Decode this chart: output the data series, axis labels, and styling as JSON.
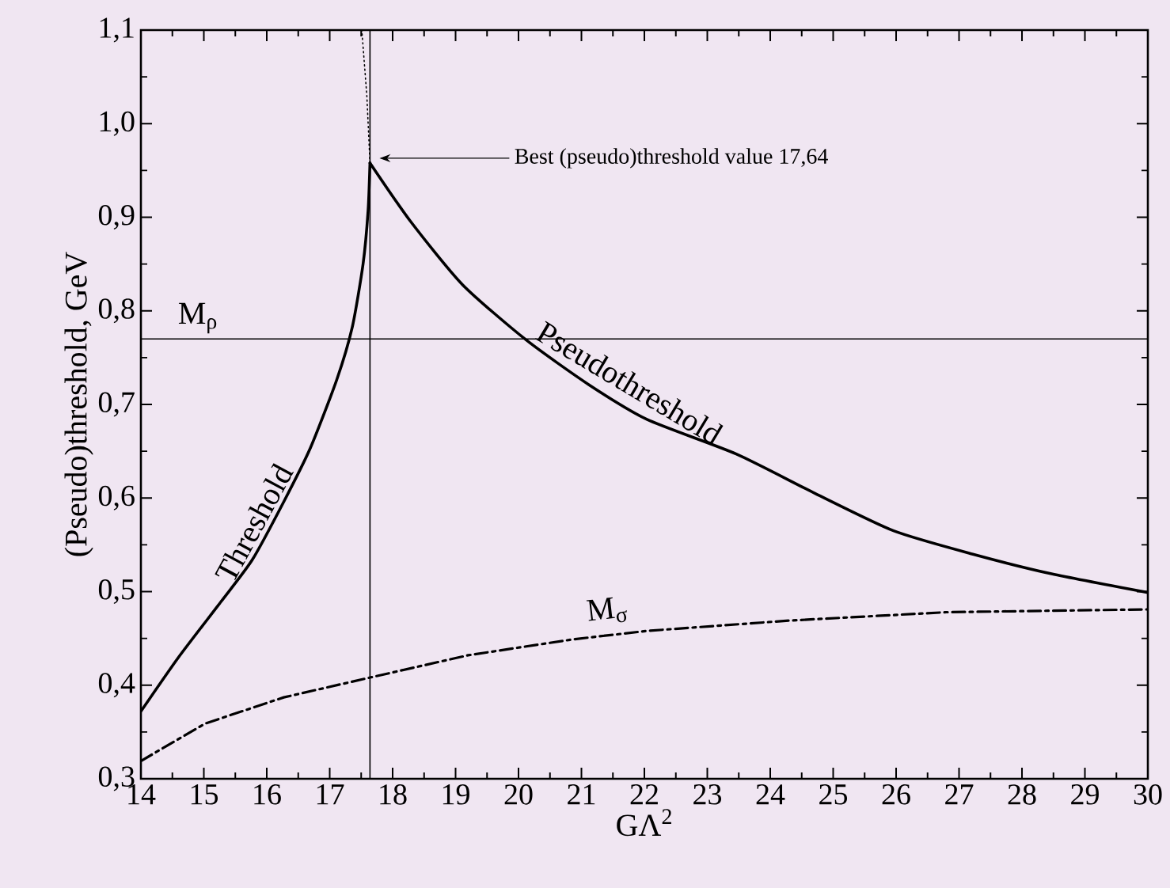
{
  "chart_data": {
    "type": "line",
    "xlabel": "GΛ$^{2}$",
    "ylabel": "(Pseudo)threshold, GeV",
    "xlim": [
      14,
      30
    ],
    "ylim": [
      0.3,
      1.1
    ],
    "xticks": [
      14,
      15,
      16,
      17,
      18,
      19,
      20,
      21,
      22,
      23,
      24,
      25,
      26,
      27,
      28,
      29,
      30
    ],
    "yticks": [
      {
        "value": 0.3,
        "label": "0,3"
      },
      {
        "value": 0.4,
        "label": "0,4"
      },
      {
        "value": 0.5,
        "label": "0,5"
      },
      {
        "value": 0.6,
        "label": "0,6"
      },
      {
        "value": 0.7,
        "label": "0,7"
      },
      {
        "value": 0.8,
        "label": "0,8"
      },
      {
        "value": 0.9,
        "label": "0,9"
      },
      {
        "value": 1.0,
        "label": "1,0"
      },
      {
        "value": 1.1,
        "label": "1,1"
      }
    ],
    "grid": false,
    "marker": "none",
    "series": [
      {
        "name": "Threshold",
        "color": "#000000",
        "line_style": "solid",
        "x": [
          14,
          14.6,
          15.27,
          15.77,
          16.27,
          16.69,
          17.11,
          17.36,
          17.53,
          17.61,
          17.64
        ],
        "values": [
          0.372,
          0.43,
          0.489,
          0.534,
          0.596,
          0.653,
          0.726,
          0.783,
          0.85,
          0.907,
          0.958
        ]
      },
      {
        "name": "Pseudothreshold",
        "color": "#000000",
        "line_style": "solid",
        "x": [
          17.64,
          18.28,
          19.11,
          20.12,
          21.12,
          22.04,
          23.46,
          24.71,
          25.96,
          27.22,
          28.47,
          30
        ],
        "values": [
          0.958,
          0.896,
          0.828,
          0.769,
          0.721,
          0.684,
          0.647,
          0.605,
          0.565,
          0.54,
          0.519,
          0.499
        ]
      },
      {
        "color": "#000000",
        "line_style": "dotted",
        "x": [
          17.64,
          17.59,
          17.51
        ],
        "values": [
          0.958,
          1.03,
          1.1
        ]
      },
      {
        "name": "M$_{σ}$",
        "color": "#000000",
        "line_style": "dashdot",
        "x": [
          14,
          15.02,
          16.27,
          17.63,
          19.2,
          20.87,
          22.04,
          24.29,
          26.8,
          30
        ],
        "values": [
          0.319,
          0.359,
          0.387,
          0.408,
          0.432,
          0.449,
          0.458,
          0.469,
          0.478,
          0.481
        ]
      }
    ],
    "ref_lines": [
      {
        "axis": "y",
        "value": 0.77,
        "label": "M$_{ρ}$",
        "color": "#000000"
      },
      {
        "axis": "x",
        "value": 17.64,
        "color": "#000000"
      }
    ],
    "annotations": [
      "Best (pseudo)threshold value 17,64"
    ]
  }
}
